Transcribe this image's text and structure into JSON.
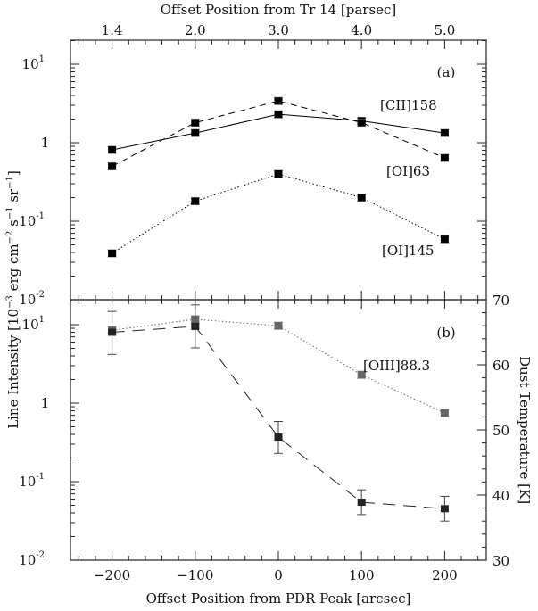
{
  "chart_data": [
    {
      "type": "line",
      "panel_label": "(a)",
      "top_xlabel": "Offset Position from Tr 14 [parsec]",
      "top_ticks": [
        "1.4",
        "2.0",
        "3.0",
        "4.0",
        "5.0"
      ],
      "x": [
        -200,
        -100,
        0,
        100,
        200
      ],
      "yscale": "log",
      "ylim": [
        0.01,
        20
      ],
      "yticks": [
        {
          "base": "10",
          "exp": "1",
          "v": 10
        },
        {
          "base": "1",
          "exp": "",
          "v": 1
        },
        {
          "base": "10",
          "exp": "-1",
          "v": 0.1
        },
        {
          "base": "10",
          "exp": "-2",
          "v": 0.01
        }
      ],
      "series": [
        {
          "name": "[CII]158",
          "style": "solid",
          "color": "#000000",
          "values": [
            0.81,
            1.33,
            2.3,
            1.9,
            1.33
          ]
        },
        {
          "name": "[OI]63",
          "style": "dashed",
          "color": "#000000",
          "values": [
            0.5,
            1.8,
            3.4,
            1.8,
            0.64
          ]
        },
        {
          "name": "[OI]145",
          "style": "dotted",
          "color": "#000000",
          "values": [
            0.039,
            0.18,
            0.4,
            0.2,
            0.059
          ]
        }
      ]
    },
    {
      "type": "line",
      "panel_label": "(b)",
      "xlabel": "Offset Position from PDR Peak [arcsec]",
      "xticks": [
        "-200",
        "-100",
        "0",
        "100",
        "200"
      ],
      "xlim": [
        -250,
        250
      ],
      "ylabel": "Line Intensity [10^-3 erg cm^-2 s^-1 sr^-1]",
      "ylabel_parts": {
        "a": "Line Intensity [10",
        "e1": "−3",
        "b": " erg cm",
        "e2": "−2",
        "c": " s",
        "e3": "−1",
        "d": " sr",
        "e4": "−1",
        "f": "]"
      },
      "y2label": "Dust Temperature [K]",
      "y2lim": [
        30,
        70
      ],
      "y2ticks": [
        "30",
        "40",
        "50",
        "60",
        "70"
      ],
      "series": [
        {
          "name": "[OIII]88.3",
          "style": "dotted",
          "color": "#666666",
          "axis": "left",
          "values": [
            8.5,
            11.7,
            9.7,
            2.3,
            0.75
          ]
        },
        {
          "name": "Dust Temperature",
          "style": "longdash",
          "color": "#222222",
          "axis": "right",
          "values": [
            65.0,
            65.9,
            48.9,
            38.9,
            37.9
          ],
          "err_low": [
            61.6,
            62.6,
            46.4,
            37.0,
            36.0
          ],
          "err_high": [
            68.2,
            69.2,
            51.3,
            40.8,
            39.8
          ]
        }
      ]
    }
  ]
}
